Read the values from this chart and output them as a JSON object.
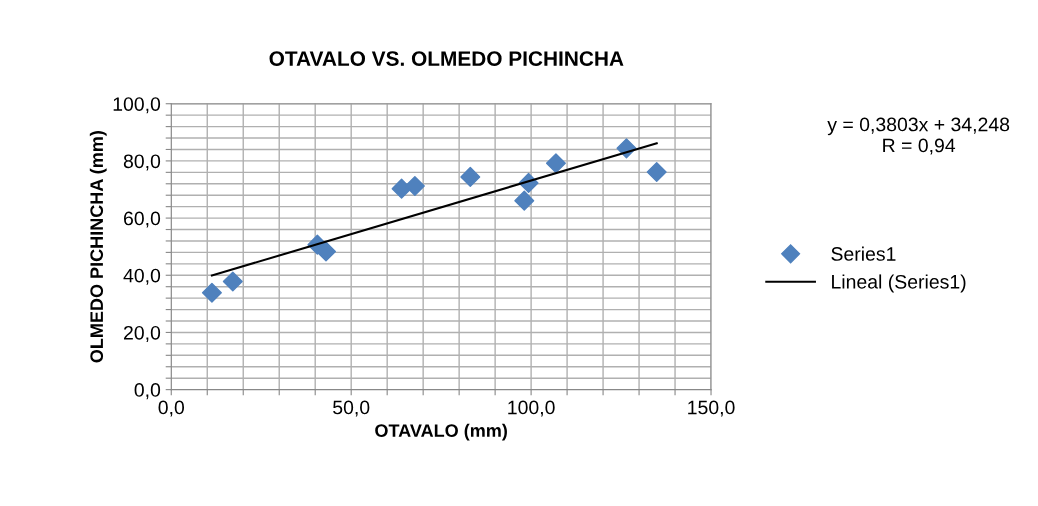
{
  "chart_data": {
    "type": "scatter",
    "title": "OTAVALO VS. OLMEDO PICHINCHA",
    "xlabel": "OTAVALO (mm)",
    "ylabel": "OLMEDO PICHINCHA (mm)",
    "annotations": [
      "y = 0,3803x + 34,248\nR = 0,94"
    ],
    "x": [
      11.3,
      17.1,
      40.6,
      43.0,
      64.0,
      67.7,
      83.1,
      99.3,
      98.1,
      106.9,
      126.5,
      134.9
    ],
    "series": [
      {
        "name": "Series1",
        "color": "#4f81bd",
        "marker": "diamond",
        "values": [
          33.9,
          37.8,
          50.7,
          48.3,
          70.3,
          71.2,
          74.4,
          72.3,
          66.1,
          79.2,
          84.4,
          76.1
        ]
      },
      {
        "name": "Lineal (Series1)",
        "type": "line",
        "color": "#000000",
        "marker": "none",
        "line_style": "solid",
        "x": [
          11.3,
          134.9
        ],
        "values": [
          39.9,
          86.2
        ]
      }
    ],
    "xlim": [
      0,
      150
    ],
    "xticks": [
      {
        "value": 0,
        "label": "0,0"
      },
      {
        "value": 10,
        "label": null
      },
      {
        "value": 20,
        "label": null
      },
      {
        "value": 30,
        "label": null
      },
      {
        "value": 40,
        "label": null
      },
      {
        "value": 50,
        "label": "50,0"
      },
      {
        "value": 60,
        "label": null
      },
      {
        "value": 70,
        "label": null
      },
      {
        "value": 80,
        "label": null
      },
      {
        "value": 90,
        "label": null
      },
      {
        "value": 100,
        "label": "100,0"
      },
      {
        "value": 110,
        "label": null
      },
      {
        "value": 120,
        "label": null
      },
      {
        "value": 130,
        "label": null
      },
      {
        "value": 140,
        "label": null
      },
      {
        "value": 150,
        "label": "150,0"
      }
    ],
    "ylim": [
      0,
      100
    ],
    "yticks": [
      {
        "value": 0,
        "label": "0,0"
      },
      {
        "value": 4,
        "label": null
      },
      {
        "value": 8,
        "label": null
      },
      {
        "value": 12,
        "label": null
      },
      {
        "value": 16,
        "label": null
      },
      {
        "value": 20,
        "label": "20,0"
      },
      {
        "value": 24,
        "label": null
      },
      {
        "value": 28,
        "label": null
      },
      {
        "value": 32,
        "label": null
      },
      {
        "value": 36,
        "label": null
      },
      {
        "value": 40,
        "label": "40,0"
      },
      {
        "value": 44,
        "label": null
      },
      {
        "value": 48,
        "label": null
      },
      {
        "value": 52,
        "label": null
      },
      {
        "value": 56,
        "label": null
      },
      {
        "value": 60,
        "label": "60,0"
      },
      {
        "value": 64,
        "label": null
      },
      {
        "value": 68,
        "label": null
      },
      {
        "value": 72,
        "label": null
      },
      {
        "value": 76,
        "label": null
      },
      {
        "value": 80,
        "label": "80,0"
      },
      {
        "value": 84,
        "label": null
      },
      {
        "value": 88,
        "label": null
      },
      {
        "value": 92,
        "label": null
      },
      {
        "value": 96,
        "label": null
      },
      {
        "value": 100,
        "label": "100,0"
      }
    ],
    "grid": true,
    "legend": "right"
  }
}
